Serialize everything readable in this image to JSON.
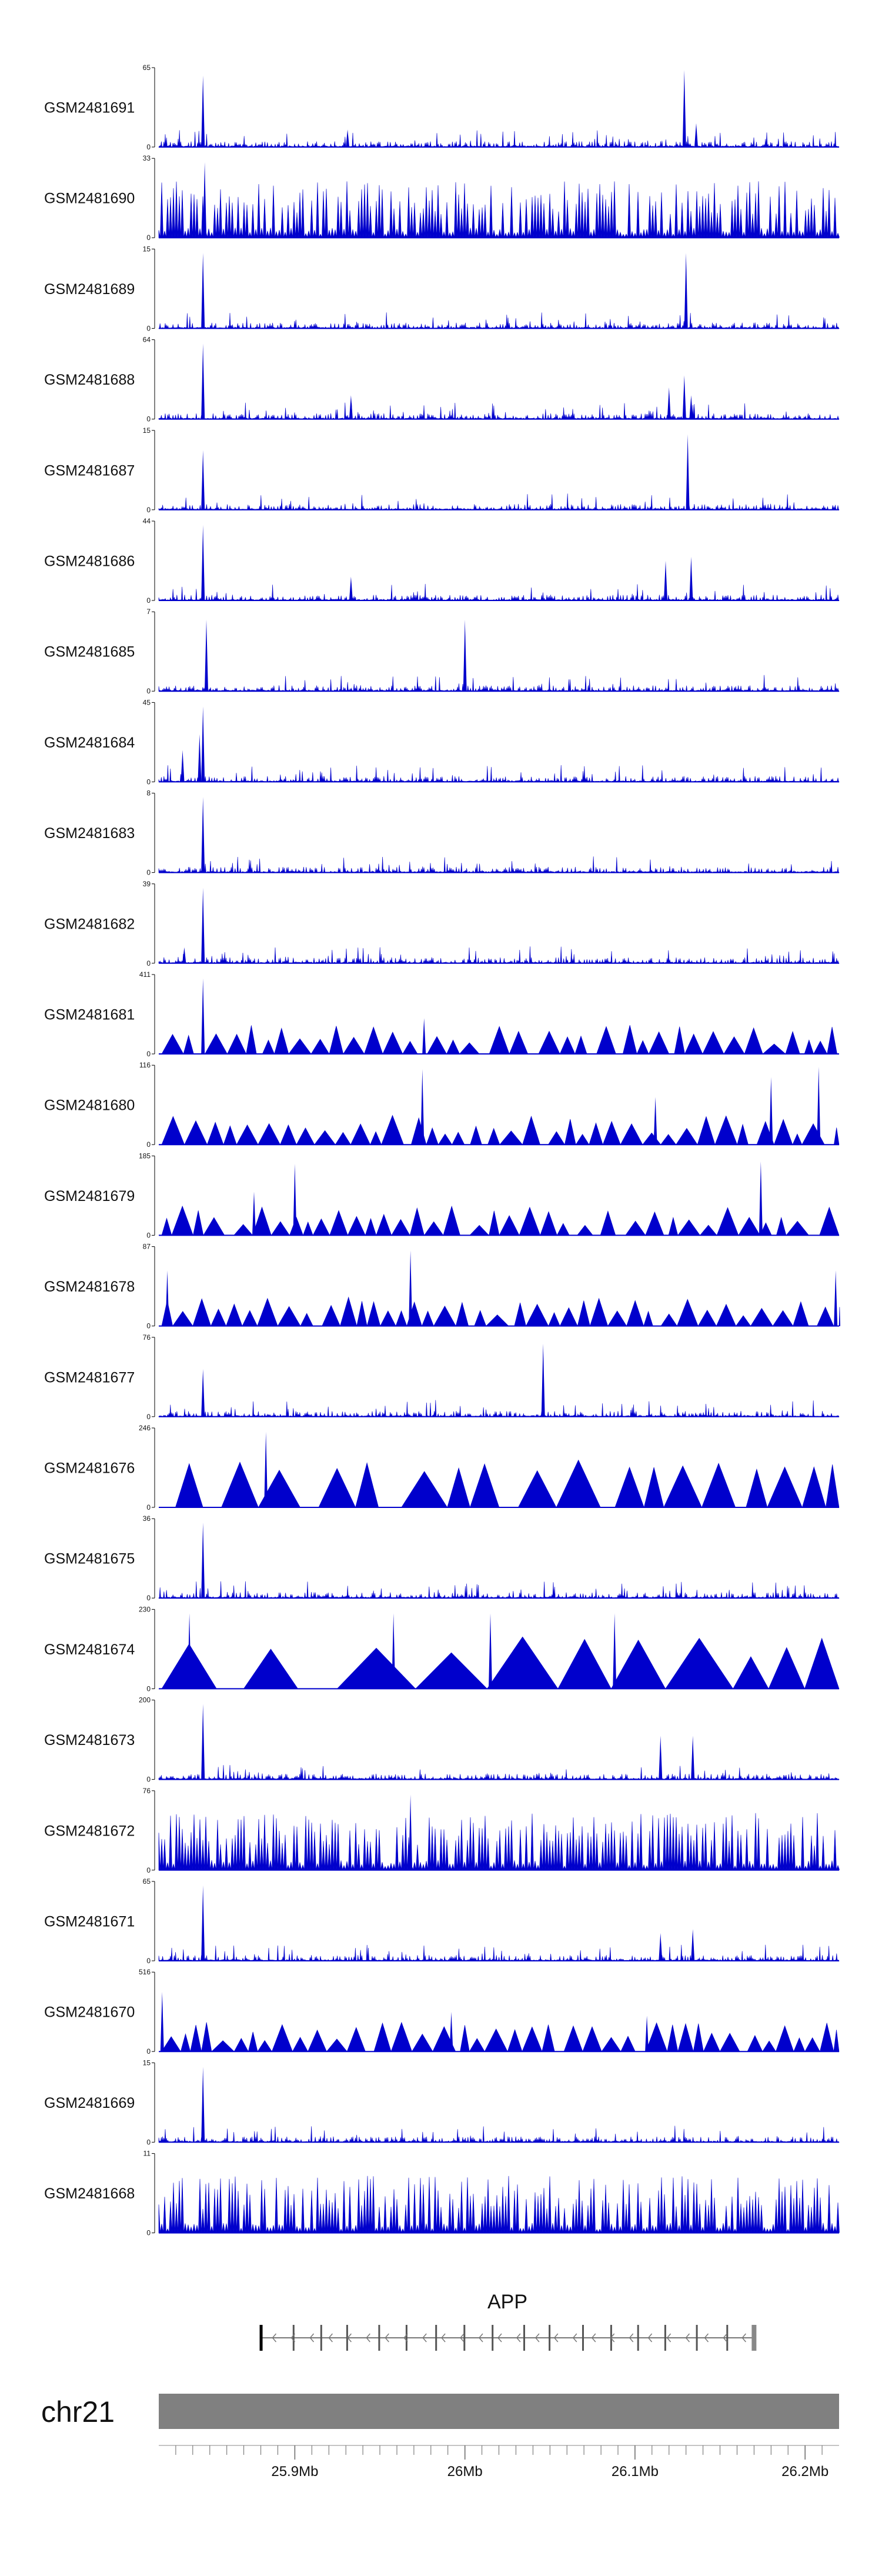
{
  "colors": {
    "signal": "#0000cc",
    "axis": "#000000",
    "ideogram": "#808080",
    "gene": "#777777",
    "exon": "#555555"
  },
  "chart_data": {
    "type": "area",
    "chromosome": "chr21",
    "region_mb": [
      25.82,
      26.22
    ],
    "tracks": [
      {
        "name": "GSM2481691",
        "ymax": "65",
        "style": "dense",
        "seed": 11,
        "peaks": [
          [
            25.846,
            0.9
          ],
          [
            25.931,
            0.22
          ],
          [
            26.129,
            0.97
          ],
          [
            26.136,
            0.3
          ]
        ]
      },
      {
        "name": "GSM2481690",
        "ymax": "33",
        "style": "spiky",
        "seed": 12,
        "peaks": [
          [
            25.847,
            0.95
          ]
        ]
      },
      {
        "name": "GSM2481689",
        "ymax": "15",
        "style": "dense",
        "seed": 13,
        "peaks": [
          [
            25.846,
            0.95
          ],
          [
            26.13,
            0.95
          ]
        ]
      },
      {
        "name": "GSM2481688",
        "ymax": "64",
        "style": "dense",
        "seed": 14,
        "peaks": [
          [
            25.846,
            0.95
          ],
          [
            25.933,
            0.3
          ],
          [
            26.12,
            0.4
          ],
          [
            26.129,
            0.55
          ],
          [
            26.133,
            0.3
          ]
        ]
      },
      {
        "name": "GSM2481687",
        "ymax": "15",
        "style": "dense",
        "seed": 15,
        "peaks": [
          [
            25.846,
            0.75
          ],
          [
            26.131,
            0.95
          ]
        ]
      },
      {
        "name": "GSM2481686",
        "ymax": "44",
        "style": "dense",
        "seed": 16,
        "peaks": [
          [
            25.846,
            0.95
          ],
          [
            25.933,
            0.3
          ],
          [
            26.118,
            0.5
          ],
          [
            26.133,
            0.55
          ]
        ]
      },
      {
        "name": "GSM2481685",
        "ymax": "7",
        "style": "dense",
        "seed": 17,
        "peaks": [
          [
            25.848,
            0.9
          ],
          [
            26.0,
            0.9
          ]
        ]
      },
      {
        "name": "GSM2481684",
        "ymax": "45",
        "style": "dense",
        "seed": 18,
        "peaks": [
          [
            25.834,
            0.4
          ],
          [
            25.846,
            0.95
          ],
          [
            25.844,
            0.6
          ]
        ]
      },
      {
        "name": "GSM2481683",
        "ymax": "8",
        "style": "dense",
        "seed": 19,
        "peaks": [
          [
            25.846,
            0.95
          ]
        ]
      },
      {
        "name": "GSM2481682",
        "ymax": "39",
        "style": "dense",
        "seed": 20,
        "peaks": [
          [
            25.846,
            0.95
          ],
          [
            25.835,
            0.2
          ]
        ]
      },
      {
        "name": "GSM2481681",
        "ymax": "411",
        "style": "tri",
        "seed": 21,
        "peaks": [
          [
            25.846,
            0.95
          ],
          [
            25.976,
            0.45
          ]
        ]
      },
      {
        "name": "GSM2481680",
        "ymax": "116",
        "style": "tri",
        "seed": 22,
        "peaks": [
          [
            25.975,
            0.95
          ],
          [
            26.112,
            0.6
          ],
          [
            26.18,
            0.85
          ],
          [
            26.208,
            0.98
          ]
        ]
      },
      {
        "name": "GSM2481679",
        "ymax": "185",
        "style": "tri",
        "seed": 23,
        "peaks": [
          [
            25.876,
            0.55
          ],
          [
            25.9,
            0.9
          ],
          [
            26.174,
            0.93
          ]
        ]
      },
      {
        "name": "GSM2481678",
        "ymax": "87",
        "style": "tri",
        "seed": 24,
        "peaks": [
          [
            25.825,
            0.7
          ],
          [
            25.968,
            0.95
          ],
          [
            26.218,
            0.7
          ]
        ]
      },
      {
        "name": "GSM2481677",
        "ymax": "76",
        "style": "dense",
        "seed": 25,
        "peaks": [
          [
            25.846,
            0.6
          ],
          [
            26.046,
            0.92
          ]
        ]
      },
      {
        "name": "GSM2481676",
        "ymax": "246",
        "style": "tri-sparse",
        "seed": 26,
        "peaks": [
          [
            25.883,
            0.95
          ]
        ]
      },
      {
        "name": "GSM2481675",
        "ymax": "36",
        "style": "dense",
        "seed": 27,
        "peaks": [
          [
            25.846,
            0.95
          ]
        ]
      },
      {
        "name": "GSM2481674",
        "ymax": "230",
        "style": "tri-big",
        "seed": 28,
        "peaks": [
          [
            25.838,
            0.95
          ],
          [
            25.958,
            0.95
          ],
          [
            26.015,
            0.95
          ],
          [
            26.088,
            0.95
          ]
        ]
      },
      {
        "name": "GSM2481673",
        "ymax": "200",
        "style": "dense",
        "seed": 29,
        "peaks": [
          [
            25.846,
            0.95
          ],
          [
            26.115,
            0.55
          ],
          [
            26.134,
            0.55
          ]
        ]
      },
      {
        "name": "GSM2481672",
        "ymax": "76",
        "style": "spiky",
        "seed": 30,
        "peaks": [
          [
            25.968,
            0.95
          ]
        ]
      },
      {
        "name": "GSM2481671",
        "ymax": "65",
        "style": "dense",
        "seed": 31,
        "peaks": [
          [
            25.846,
            0.95
          ],
          [
            26.115,
            0.35
          ],
          [
            26.134,
            0.4
          ]
        ]
      },
      {
        "name": "GSM2481670",
        "ymax": "516",
        "style": "tri",
        "seed": 32,
        "peaks": [
          [
            25.822,
            0.75
          ],
          [
            25.992,
            0.5
          ],
          [
            26.107,
            0.45
          ]
        ]
      },
      {
        "name": "GSM2481669",
        "ymax": "15",
        "style": "dense",
        "seed": 33,
        "peaks": [
          [
            25.846,
            0.95
          ]
        ]
      },
      {
        "name": "GSM2481668",
        "ymax": "11",
        "style": "spiky",
        "seed": 34,
        "peaks": []
      }
    ],
    "y_min_label": "0",
    "gene": {
      "name": "APP",
      "start_mb": 25.88,
      "end_mb": 26.17,
      "strand": "-"
    },
    "x_ticks": [
      {
        "value": 25.9,
        "label": "25.9Mb"
      },
      {
        "value": 26.0,
        "label": "26Mb"
      },
      {
        "value": 26.1,
        "label": "26.1Mb"
      },
      {
        "value": 26.2,
        "label": "26.2Mb"
      }
    ]
  }
}
